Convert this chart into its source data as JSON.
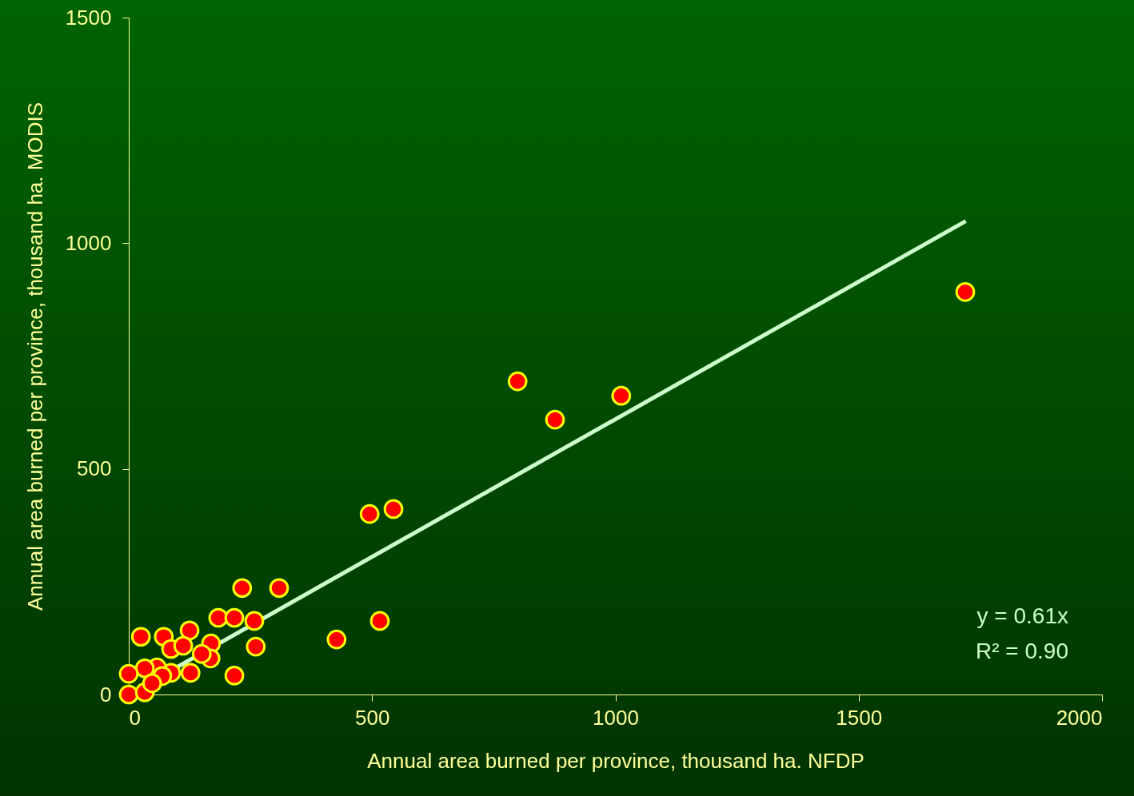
{
  "chart_data": {
    "type": "scatter",
    "xlabel": "Annual area burned per province, thousand ha. NFDP",
    "ylabel": "Annual area burned per province, thousand ha. MODIS",
    "xlim": [
      0,
      2000
    ],
    "xticks": [
      0,
      500,
      1000,
      1500,
      2000
    ],
    "ylim": [
      0,
      1500
    ],
    "yticks": [
      0,
      500,
      1000,
      1500
    ],
    "grid": false,
    "annotations": [
      "y = 0.61x",
      "R² = 0.90"
    ],
    "series": [
      {
        "marker": "circle",
        "color": "#ff0000",
        "x": [
          1719,
          799,
          876,
          1012,
          495,
          544,
          427,
          516,
          233,
          309,
          184,
          217,
          258,
          261,
          217,
          125,
          169,
          168,
          25,
          72,
          87,
          112,
          127,
          87,
          58,
          33,
          69,
          0,
          0,
          33,
          48,
          150
        ],
        "values": [
          892,
          694,
          609,
          662,
          400,
          411,
          122,
          163,
          236,
          236,
          170,
          170,
          163,
          106,
          42,
          142,
          113,
          80,
          128,
          128,
          101,
          108,
          48,
          48,
          60,
          58,
          41,
          46,
          0,
          5,
          25,
          90
        ]
      },
      {
        "type": "line",
        "color": "#ccffcc",
        "x": [
          0,
          1720
        ],
        "values": [
          0,
          1049
        ]
      }
    ]
  }
}
